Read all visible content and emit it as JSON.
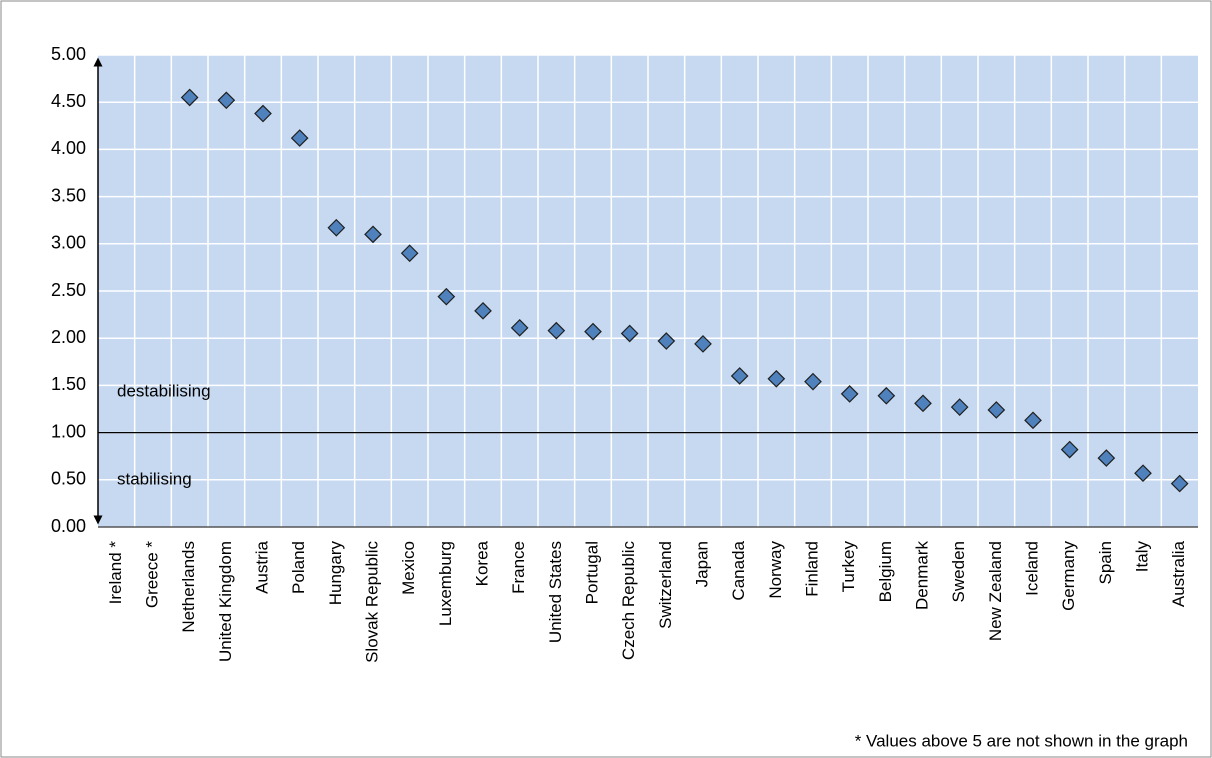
{
  "chart_data": {
    "type": "scatter",
    "categories": [
      "Ireland *",
      "Greece *",
      "Netherlands",
      "United Kingdom",
      "Austria",
      "Poland",
      "Hungary",
      "Slovak Republic",
      "Mexico",
      "Luxemburg",
      "Korea",
      "France",
      "United States",
      "Portugal",
      "Czech Republic",
      "Switzerland",
      "Japan",
      "Canada",
      "Norway",
      "Finland",
      "Turkey",
      "Belgium",
      "Denmark",
      "Sweden",
      "New Zealand",
      "Iceland",
      "Germany",
      "Spain",
      "Italy",
      "Australia"
    ],
    "values": [
      null,
      null,
      4.55,
      4.52,
      4.38,
      4.12,
      3.17,
      3.1,
      2.9,
      2.44,
      2.29,
      2.11,
      2.08,
      2.07,
      2.05,
      1.97,
      1.94,
      1.6,
      1.57,
      1.54,
      1.41,
      1.39,
      1.31,
      1.27,
      1.24,
      1.13,
      0.82,
      0.73,
      0.57,
      0.46
    ],
    "color": "#4f81bd",
    "ylim": [
      0,
      5
    ],
    "yticks": [
      {
        "value": 0,
        "label": "0.00"
      },
      {
        "value": 0.5,
        "label": "0.50"
      },
      {
        "value": 1,
        "label": "1.00"
      },
      {
        "value": 1.5,
        "label": "1.50"
      },
      {
        "value": 2,
        "label": "2.00"
      },
      {
        "value": 2.5,
        "label": "2.50"
      },
      {
        "value": 3,
        "label": "3.00"
      },
      {
        "value": 3.5,
        "label": "3.50"
      },
      {
        "value": 4,
        "label": "4.00"
      },
      {
        "value": 4.5,
        "label": "4.50"
      },
      {
        "value": 5,
        "label": "5.00"
      }
    ],
    "grid": true,
    "reference_line": 1,
    "annotations": [
      "destabilising",
      "stabilising"
    ],
    "footnote": "* Values above 5 are not shown in the graph"
  }
}
